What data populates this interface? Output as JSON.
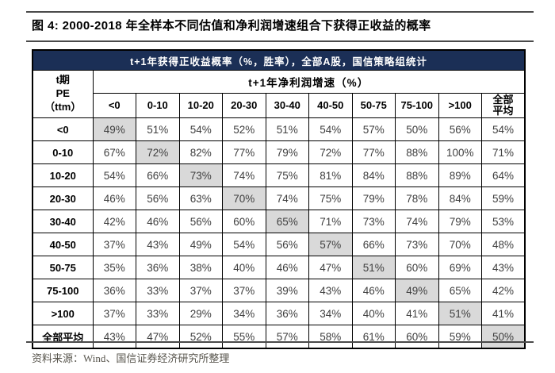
{
  "figure": {
    "caption": "图 4: 2000-2018 年全样本不同估值和净利润增速组合下获得正收益的概率",
    "source": "资料来源：Wind、国信证券经济研究所整理"
  },
  "colors": {
    "banner_bg": "#1B2F56",
    "banner_text": "#FFFFFF",
    "highlight": "#D9D9D9",
    "border": "#000000",
    "rule": "#4A4A4A",
    "data_text": "#3F3F3F",
    "source_text": "#57544C"
  },
  "chart_data": {
    "type": "table",
    "title": "t+1年获得正收益概率（%，胜率），全部A股，国信策略组统计",
    "row_axis_label": "t期\nPE\n（ttm）",
    "col_axis_label": "t+1年净利润增速（%）",
    "columns": [
      "<0",
      "0-10",
      "10-20",
      "20-30",
      "30-40",
      "40-50",
      "50-75",
      "75-100",
      ">100",
      "全部\n平均"
    ],
    "rows": [
      {
        "label": "<0",
        "values": [
          "49%",
          "51%",
          "54%",
          "52%",
          "51%",
          "54%",
          "57%",
          "50%",
          "56%",
          "54%"
        ],
        "highlight_col": 0
      },
      {
        "label": "0-10",
        "values": [
          "67%",
          "72%",
          "82%",
          "77%",
          "79%",
          "72%",
          "77%",
          "88%",
          "100%",
          "71%"
        ],
        "highlight_col": 1
      },
      {
        "label": "10-20",
        "values": [
          "54%",
          "66%",
          "73%",
          "74%",
          "75%",
          "81%",
          "84%",
          "88%",
          "89%",
          "64%"
        ],
        "highlight_col": 2
      },
      {
        "label": "20-30",
        "values": [
          "46%",
          "56%",
          "63%",
          "70%",
          "74%",
          "75%",
          "79%",
          "78%",
          "84%",
          "59%"
        ],
        "highlight_col": 3
      },
      {
        "label": "30-40",
        "values": [
          "42%",
          "46%",
          "56%",
          "60%",
          "65%",
          "71%",
          "73%",
          "74%",
          "79%",
          "53%"
        ],
        "highlight_col": 4
      },
      {
        "label": "40-50",
        "values": [
          "37%",
          "43%",
          "49%",
          "54%",
          "56%",
          "57%",
          "66%",
          "73%",
          "70%",
          "48%"
        ],
        "highlight_col": 5
      },
      {
        "label": "50-75",
        "values": [
          "35%",
          "36%",
          "38%",
          "40%",
          "46%",
          "47%",
          "51%",
          "60%",
          "69%",
          "43%"
        ],
        "highlight_col": 6
      },
      {
        "label": "75-100",
        "values": [
          "36%",
          "33%",
          "37%",
          "37%",
          "39%",
          "43%",
          "46%",
          "49%",
          "65%",
          "42%"
        ],
        "highlight_col": 7
      },
      {
        "label": ">100",
        "values": [
          "37%",
          "33%",
          "29%",
          "34%",
          "36%",
          "34%",
          "40%",
          "41%",
          "51%",
          "41%"
        ],
        "highlight_col": 8
      },
      {
        "label": "全部平均",
        "values": [
          "43%",
          "47%",
          "52%",
          "55%",
          "57%",
          "58%",
          "61%",
          "60%",
          "59%",
          "50%"
        ],
        "highlight_col": 9
      }
    ]
  }
}
